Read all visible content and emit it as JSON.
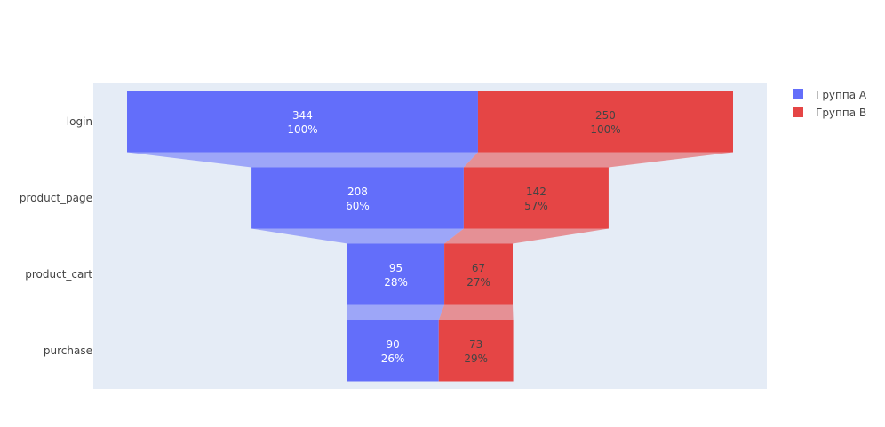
{
  "chart_data": {
    "type": "funnel",
    "title": "",
    "categories": [
      "login",
      "product_page",
      "product_cart",
      "purchase"
    ],
    "series": [
      {
        "name": "Группа А",
        "color": "#636EFA",
        "values": [
          344,
          208,
          95,
          90
        ],
        "percents": [
          "100%",
          "60%",
          "28%",
          "26%"
        ]
      },
      {
        "name": "Группа В",
        "color": "#E54545",
        "values": [
          250,
          142,
          67,
          73
        ],
        "percents": [
          "100%",
          "57%",
          "27%",
          "29%"
        ]
      }
    ],
    "legend_position": "top-right",
    "background_color": "#E5ECF6"
  }
}
